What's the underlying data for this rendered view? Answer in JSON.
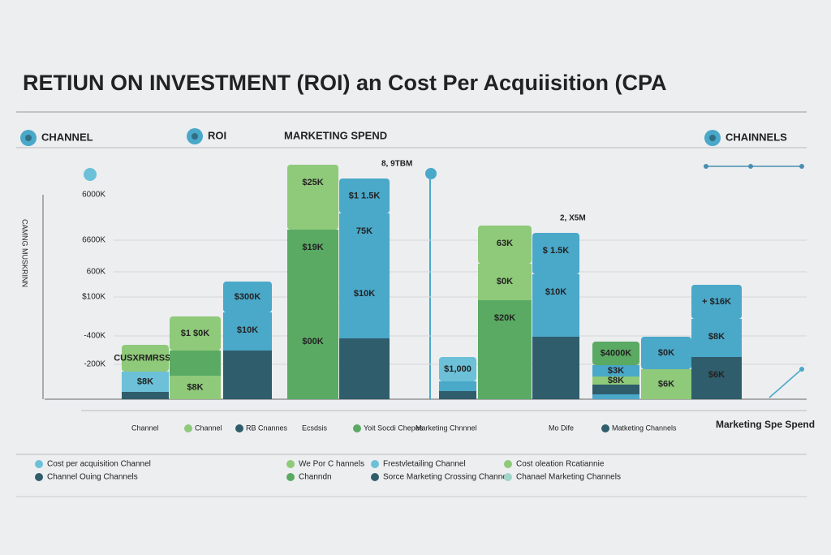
{
  "title": "RETIUN ON INVESTMENT (ROI) an Cost Per Acquiisition (CPA",
  "top_legend": [
    "CHANNEL",
    "ROI",
    "MARKETING SPEND",
    "CHAINNELS"
  ],
  "y_axis_title": "CAMNG MUSKRINN",
  "y_labels": [
    "6000K",
    "6600K",
    "600K",
    "$100K",
    "-400K",
    "-200K"
  ],
  "annotations": [
    "8, 9TBM",
    "2, X5M"
  ],
  "bars": [
    {
      "labels": [
        "CUSXRMRSSS",
        "$8K"
      ]
    },
    {
      "labels": [
        "$1 $0K",
        "$8K"
      ]
    },
    {
      "labels": [
        "$300K",
        "$10K"
      ]
    },
    {
      "labels": [
        "$25K",
        "$19K",
        "$00K"
      ]
    },
    {
      "labels": [
        "$1 1.5K",
        "75K",
        "$10K"
      ]
    },
    {
      "labels": [
        "$1,000"
      ]
    },
    {
      "labels": [
        "63K",
        "$0K",
        "$20K"
      ]
    },
    {
      "labels": [
        "$ 1.5K",
        "$10K"
      ]
    },
    {
      "labels": [
        "$4000K",
        "$3K",
        "$8K"
      ]
    },
    {
      "labels": [
        "$0K",
        "$6K"
      ]
    },
    {
      "labels": [
        "+ $16K",
        "$8K",
        "$6K"
      ]
    }
  ],
  "x_labels": [
    "Channel",
    "Channel",
    "RB Cnannes",
    "Ecsdsis",
    "Yoit Socdi Chepes",
    "Marketing Chnnnel",
    "Mo Dife",
    "Matketing Channels"
  ],
  "x_axis_title": "Marketing Spe Spend",
  "bottom_legend": [
    "Cost per acquisition Channel",
    "Channel Ouing Channels",
    "We Por C hannels",
    "Channdn",
    "Frestvletailing Channel",
    "Sorce Marketing Crossing Channel",
    "Cost oleation Rcatiannie",
    "Chanael Marketing Channels"
  ]
}
